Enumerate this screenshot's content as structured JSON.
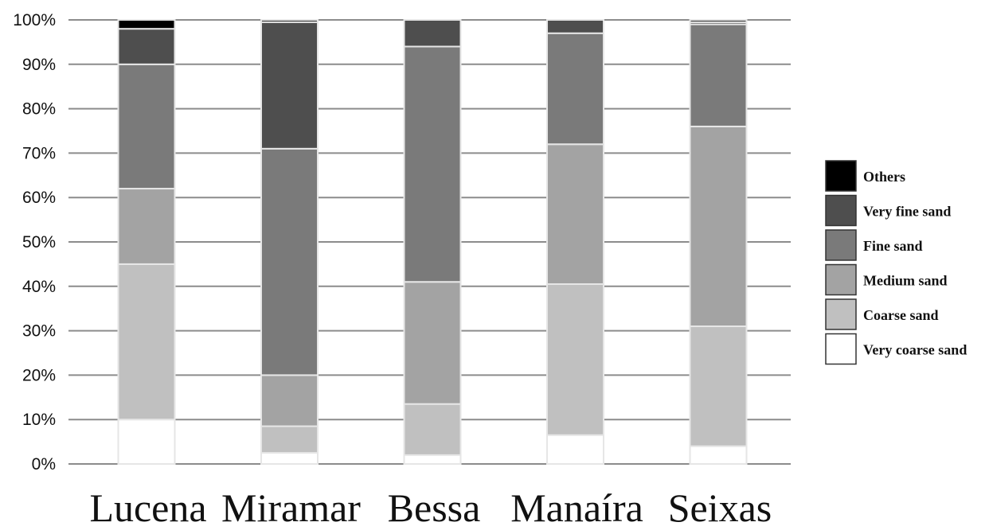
{
  "chart_data": {
    "type": "bar",
    "stacked": true,
    "normalized": true,
    "categories": [
      "Lucena",
      "Miramar",
      "Bessa",
      "Manaíra",
      "Seixas"
    ],
    "series": [
      {
        "name": "Very coarse sand",
        "color": "#ffffff",
        "values": [
          10,
          2.5,
          2,
          6.5,
          4
        ]
      },
      {
        "name": "Coarse sand",
        "color": "#c0c0c0",
        "values": [
          35,
          6,
          11.5,
          34,
          27
        ]
      },
      {
        "name": "Medium sand",
        "color": "#a3a3a3",
        "values": [
          17,
          11.5,
          27.5,
          31.5,
          45
        ]
      },
      {
        "name": "Fine sand",
        "color": "#7a7a7a",
        "values": [
          28,
          51,
          53,
          25,
          23
        ]
      },
      {
        "name": "Very fine sand",
        "color": "#4e4e4e",
        "values": [
          8,
          28.5,
          6,
          3,
          0.5
        ]
      },
      {
        "name": "Others",
        "color": "#000000",
        "values": [
          2,
          0.5,
          0,
          0,
          0.5
        ]
      }
    ],
    "y_ticks": [
      "0%",
      "10%",
      "20%",
      "30%",
      "40%",
      "50%",
      "60%",
      "70%",
      "80%",
      "90%",
      "100%"
    ],
    "ylim": [
      0,
      100
    ],
    "grid": true,
    "legend": {
      "placement": "right",
      "order": [
        "Others",
        "Very fine sand",
        "Fine sand",
        "Medium sand",
        "Coarse sand",
        "Very coarse sand"
      ]
    }
  }
}
